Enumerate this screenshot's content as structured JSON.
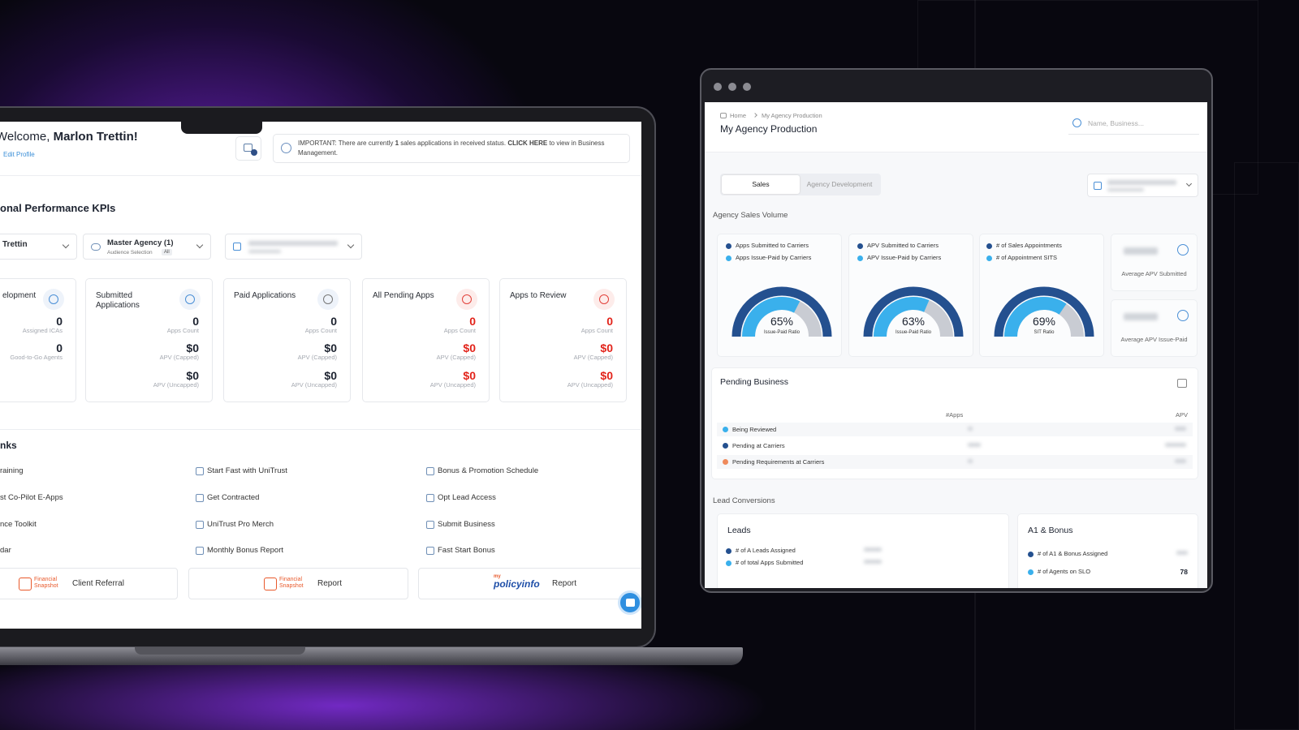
{
  "laptop": {
    "welcome": {
      "greeting": "Welcome,",
      "name": "Marlon Trettin!"
    },
    "edit_profile": "Edit Profile",
    "notice": [
      "IMPORTANT: There are currently ",
      "1",
      " sales applications in received status. ",
      "CLICK HERE",
      " to view in Business Management."
    ],
    "kpi_title": "onal Performance KPIs",
    "filters": [
      {
        "label": "Trettin"
      },
      {
        "label": "Master Agency (1)",
        "sub": "Audience Selection",
        "tag": "All"
      }
    ],
    "kpi_cards": [
      {
        "title": "elopment",
        "alert": false,
        "rows": [
          {
            "value": 0,
            "label": "Assigned ICAs"
          },
          {
            "value": 0,
            "label": "Good-to-Go Agents"
          }
        ]
      },
      {
        "title": "Submitted Applications",
        "alert": false,
        "rows": [
          {
            "value": 0,
            "label": "Apps Count"
          },
          {
            "value": "$0",
            "label": "APV (Capped)"
          },
          {
            "value": "$0",
            "label": "APV (Uncapped)"
          }
        ]
      },
      {
        "title": "Paid Applications",
        "alert": false,
        "rows": [
          {
            "value": 0,
            "label": "Apps Count"
          },
          {
            "value": "$0",
            "label": "APV (Capped)"
          },
          {
            "value": "$0",
            "label": "APV (Uncapped)"
          }
        ]
      },
      {
        "title": "All Pending Apps",
        "alert": true,
        "rows": [
          {
            "value": 0,
            "label": "Apps Count"
          },
          {
            "value": "$0",
            "label": "APV (Capped)"
          },
          {
            "value": "$0",
            "label": "APV (Uncapped)"
          }
        ]
      },
      {
        "title": "Apps to Review",
        "alert": true,
        "rows": [
          {
            "value": 0,
            "label": "Apps Count"
          },
          {
            "value": "$0",
            "label": "APV (Capped)"
          },
          {
            "value": "$0",
            "label": "APV (Uncapped)"
          }
        ]
      }
    ],
    "links_title": "nks",
    "links": [
      [
        "raining",
        "Start Fast with UniTrust",
        "Bonus & Promotion Schedule"
      ],
      [
        "st Co-Pilot E-Apps",
        "Get Contracted",
        "Opt Lead Access"
      ],
      [
        "nce Toolkit",
        "UniTrust Pro Merch",
        "Submit Business"
      ],
      [
        "dar",
        "Monthly Bonus Report",
        "Fast Start Bonus"
      ]
    ],
    "reports": [
      {
        "logo": "Financial Snapshot",
        "label": "Client Referral"
      },
      {
        "logo": "Financial Snapshot",
        "label": "Report"
      },
      {
        "logo_prefix": "my",
        "logo": "policyinfo",
        "label": "Report"
      }
    ]
  },
  "browser": {
    "breadcrumb": [
      "Home",
      "My Agency Production"
    ],
    "title": "My Agency Production",
    "search_placeholder": "Name, Business...",
    "tabs": [
      "Sales",
      "Agency Development"
    ],
    "active_tab": 0,
    "section": "Agency Sales Volume",
    "gauges": [
      {
        "legend": [
          "Apps Submitted to Carriers",
          "Apps Issue-Paid by Carriers"
        ],
        "value": 65,
        "value_label": "65%",
        "label": "Issue-Paid Ratio"
      },
      {
        "legend": [
          "APV Submitted to Carriers",
          "APV Issue-Paid by Carriers"
        ],
        "value": 63,
        "value_label": "63%",
        "label": "Issue-Paid Ratio"
      },
      {
        "legend": [
          "# of Sales Appointments",
          "# of Appointment SITS"
        ],
        "value": 69,
        "value_label": "69%",
        "label": "SIT Ratio"
      }
    ],
    "side_stats": [
      "Average APV Submitted",
      "Average APV Issue-Paid"
    ],
    "pending": {
      "title": "Pending Business",
      "columns": [
        "#Apps",
        "APV"
      ],
      "rows": [
        "Being Reviewed",
        "Pending at Carriers",
        "Pending Requirements at Carriers"
      ]
    },
    "lead_section": "Lead Conversions",
    "leads": {
      "title": "Leads",
      "rows": [
        "# of A Leads Assigned",
        "# of total Apps Submitted"
      ]
    },
    "a1": {
      "title": "A1 & Bonus",
      "rows": [
        {
          "label": "# of A1 & Bonus Assigned"
        },
        {
          "label": "# of Agents on SLO",
          "value": 78
        }
      ]
    }
  }
}
